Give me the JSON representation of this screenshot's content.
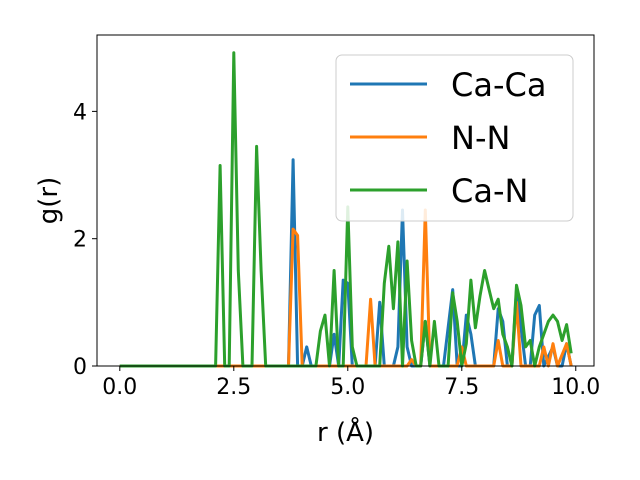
{
  "chart_data": {
    "type": "line",
    "title": "",
    "xlabel": "r (Å)",
    "ylabel": "g(r)",
    "xlim": [
      -0.5,
      10.4
    ],
    "ylim": [
      0,
      5.2
    ],
    "xticks": [
      0.0,
      2.5,
      5.0,
      7.5,
      10.0
    ],
    "xtick_labels": [
      "0.0",
      "2.5",
      "5.0",
      "7.5",
      "10.0"
    ],
    "yticks": [
      0,
      2,
      4
    ],
    "ytick_labels": [
      "0",
      "2",
      "4"
    ],
    "grid": false,
    "legend_position": "top-right",
    "series": [
      {
        "name": "Ca-Ca",
        "color": "#1f77b4",
        "points": [
          [
            0,
            0
          ],
          [
            3.6,
            0
          ],
          [
            3.7,
            0
          ],
          [
            3.8,
            3.24
          ],
          [
            3.9,
            0
          ],
          [
            4.0,
            0
          ],
          [
            4.1,
            0.3
          ],
          [
            4.2,
            0
          ],
          [
            4.3,
            0
          ],
          [
            4.6,
            0
          ],
          [
            4.7,
            0.5
          ],
          [
            4.8,
            0
          ],
          [
            4.9,
            1.35
          ],
          [
            5.0,
            1.3
          ],
          [
            5.1,
            0
          ],
          [
            5.6,
            0
          ],
          [
            5.7,
            1.0
          ],
          [
            5.8,
            0
          ],
          [
            6.0,
            0
          ],
          [
            6.1,
            0.3
          ],
          [
            6.2,
            2.45
          ],
          [
            6.3,
            0.3
          ],
          [
            6.4,
            0
          ],
          [
            6.6,
            0
          ],
          [
            6.7,
            0.7
          ],
          [
            6.8,
            0
          ],
          [
            7.1,
            0
          ],
          [
            7.3,
            1.2
          ],
          [
            7.4,
            0
          ],
          [
            7.5,
            0
          ],
          [
            7.6,
            0.8
          ],
          [
            7.7,
            0.5
          ],
          [
            7.8,
            0
          ],
          [
            8.2,
            0
          ],
          [
            8.3,
            0.9
          ],
          [
            8.4,
            0.7
          ],
          [
            8.5,
            0
          ],
          [
            8.6,
            0
          ],
          [
            8.7,
            1.2
          ],
          [
            8.8,
            0.6
          ],
          [
            8.9,
            0
          ],
          [
            9.0,
            0
          ],
          [
            9.1,
            0.8
          ],
          [
            9.2,
            0.95
          ],
          [
            9.3,
            0
          ],
          [
            9.5,
            0.3
          ],
          [
            9.6,
            0
          ],
          [
            9.7,
            0
          ],
          [
            9.8,
            0.35
          ],
          [
            9.9,
            0
          ]
        ]
      },
      {
        "name": "N-N",
        "color": "#ff7f0e",
        "points": [
          [
            0,
            0
          ],
          [
            3.7,
            0
          ],
          [
            3.8,
            2.15
          ],
          [
            3.9,
            2.05
          ],
          [
            4.0,
            0
          ],
          [
            5.4,
            0
          ],
          [
            5.5,
            1.05
          ],
          [
            5.6,
            0
          ],
          [
            6.3,
            0
          ],
          [
            6.4,
            0.1
          ],
          [
            6.5,
            0
          ],
          [
            6.6,
            0
          ],
          [
            6.7,
            2.45
          ],
          [
            6.8,
            0
          ],
          [
            7.4,
            0
          ],
          [
            7.5,
            0.3
          ],
          [
            7.6,
            0
          ],
          [
            8.2,
            0
          ],
          [
            8.3,
            0.4
          ],
          [
            8.4,
            0
          ],
          [
            8.6,
            0
          ],
          [
            8.7,
            1.0
          ],
          [
            8.8,
            0
          ],
          [
            9.2,
            0
          ],
          [
            9.3,
            0.3
          ],
          [
            9.4,
            0
          ],
          [
            9.5,
            0.35
          ],
          [
            9.6,
            0
          ],
          [
            9.8,
            0.35
          ],
          [
            9.9,
            0
          ]
        ]
      },
      {
        "name": "Ca-N",
        "color": "#2ca02c",
        "points": [
          [
            0,
            0
          ],
          [
            2.1,
            0
          ],
          [
            2.2,
            3.15
          ],
          [
            2.3,
            0
          ],
          [
            2.4,
            0
          ],
          [
            2.5,
            4.92
          ],
          [
            2.6,
            1.5
          ],
          [
            2.7,
            0
          ],
          [
            2.9,
            0
          ],
          [
            3.0,
            3.45
          ],
          [
            3.1,
            1.5
          ],
          [
            3.2,
            0
          ],
          [
            4.3,
            0
          ],
          [
            4.4,
            0.55
          ],
          [
            4.5,
            0.8
          ],
          [
            4.6,
            0
          ],
          [
            4.7,
            1.5
          ],
          [
            4.8,
            0
          ],
          [
            4.9,
            0
          ],
          [
            5.0,
            2.5
          ],
          [
            5.1,
            0.3
          ],
          [
            5.2,
            0
          ],
          [
            5.7,
            0
          ],
          [
            5.8,
            1.3
          ],
          [
            5.9,
            1.88
          ],
          [
            6.0,
            0.9
          ],
          [
            6.1,
            1.95
          ],
          [
            6.2,
            0
          ],
          [
            6.3,
            1.65
          ],
          [
            6.4,
            0.4
          ],
          [
            6.5,
            0
          ],
          [
            6.6,
            0
          ],
          [
            6.7,
            0.7
          ],
          [
            6.8,
            0
          ],
          [
            6.9,
            0.7
          ],
          [
            7.0,
            0
          ],
          [
            7.2,
            0
          ],
          [
            7.3,
            1.15
          ],
          [
            7.4,
            0.7
          ],
          [
            7.5,
            0
          ],
          [
            7.6,
            0.35
          ],
          [
            7.7,
            1.35
          ],
          [
            7.8,
            0.6
          ],
          [
            7.9,
            1.1
          ],
          [
            8.0,
            1.5
          ],
          [
            8.1,
            1.2
          ],
          [
            8.2,
            0.9
          ],
          [
            8.3,
            1.05
          ],
          [
            8.4,
            0.5
          ],
          [
            8.5,
            0.3
          ],
          [
            8.6,
            0
          ],
          [
            8.7,
            1.27
          ],
          [
            8.8,
            0.95
          ],
          [
            8.9,
            0.3
          ],
          [
            9.0,
            0.4
          ],
          [
            9.1,
            0
          ],
          [
            9.2,
            0.3
          ],
          [
            9.3,
            0.5
          ],
          [
            9.4,
            0.7
          ],
          [
            9.5,
            0.8
          ],
          [
            9.6,
            0.7
          ],
          [
            9.7,
            0.4
          ],
          [
            9.8,
            0.65
          ],
          [
            9.9,
            0.2
          ]
        ]
      }
    ]
  }
}
